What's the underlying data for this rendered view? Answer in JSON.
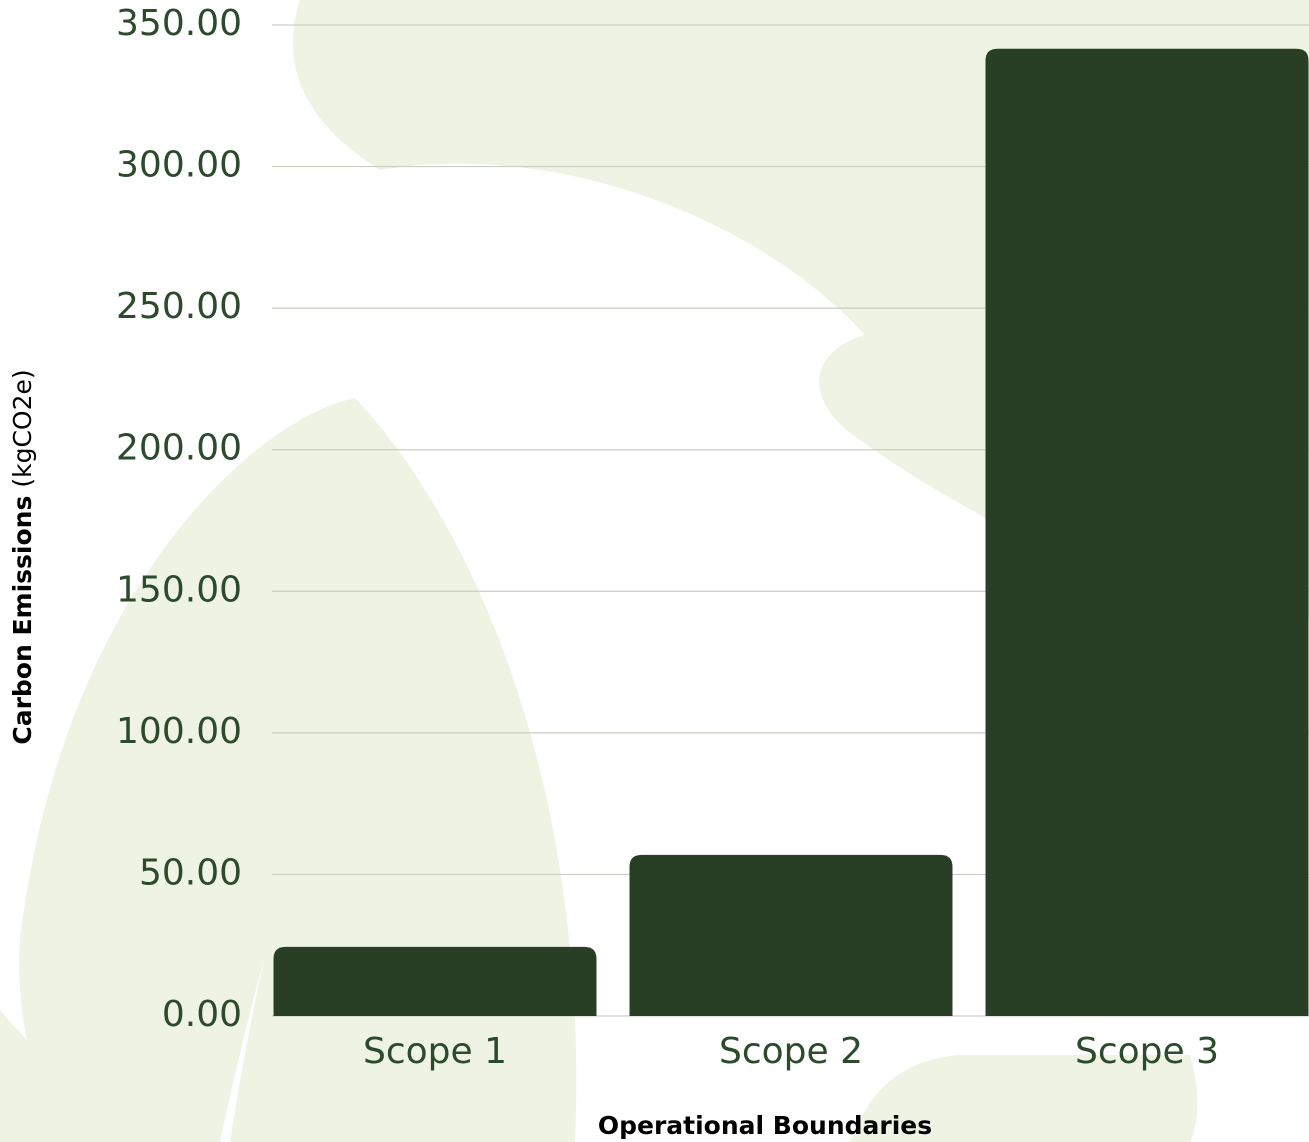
{
  "chart_data": {
    "type": "bar",
    "categories": [
      "Scope 1",
      "Scope 2",
      "Scope 3"
    ],
    "values": [
      24.4,
      56.9,
      341.6
    ],
    "color": "#283f25",
    "ylim": [
      0,
      350
    ],
    "yticks": [
      {
        "value": 0,
        "label": "0.00"
      },
      {
        "value": 50,
        "label": "50.00"
      },
      {
        "value": 100,
        "label": "100.00"
      },
      {
        "value": 150,
        "label": "150.00"
      },
      {
        "value": 200,
        "label": "200.00"
      },
      {
        "value": 250,
        "label": "250.00"
      },
      {
        "value": 300,
        "label": "300.00"
      },
      {
        "value": 350,
        "label": "350.00"
      }
    ],
    "grid": true,
    "x_label": "Operational Boundaries",
    "y_label": "Carbon Emissions",
    "y_label_unit": "(kgCO2e)"
  }
}
